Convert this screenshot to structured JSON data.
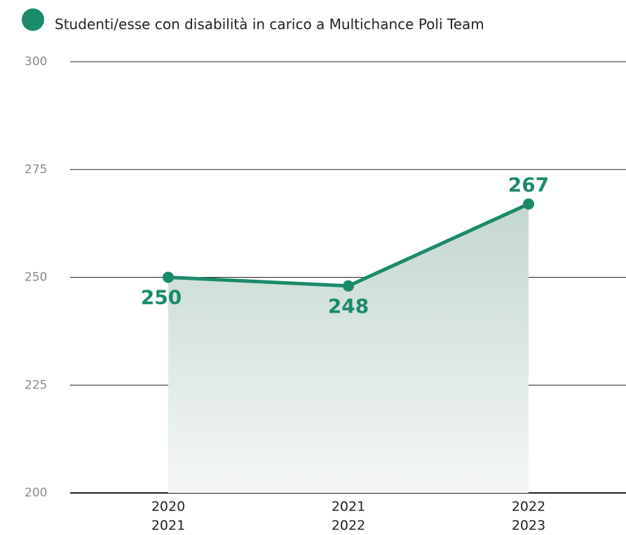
{
  "chart_data": {
    "type": "line",
    "categories": [
      [
        "2020",
        "2021"
      ],
      [
        "2021",
        "2022"
      ],
      [
        "2022",
        "2023"
      ]
    ],
    "series": [
      {
        "name": "Studenti/esse con disabilità in carico a Multichance Poli Team",
        "color": "#1b8a6b",
        "values": [
          250,
          248,
          267
        ]
      }
    ],
    "ylim": [
      200,
      300
    ],
    "yticks": [
      200,
      225,
      250,
      275,
      300
    ],
    "grid": true,
    "area": true
  }
}
